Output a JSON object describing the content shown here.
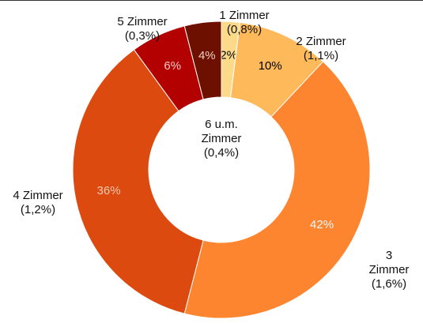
{
  "chart_data": {
    "type": "donut",
    "categories": [
      "1 Zimmer",
      "2 Zimmer",
      "3 Zimmer",
      "4 Zimmer",
      "5 Zimmer",
      "6 u.m. Zimmer"
    ],
    "values": [
      2,
      10,
      42,
      36,
      6,
      4
    ],
    "value_labels": [
      "2%",
      "10%",
      "42%",
      "36%",
      "6%",
      "4%"
    ],
    "category_notes": [
      "(0,8%)",
      "(1,1%)",
      "(1,6%)",
      "(1,2%)",
      "(0,3%)",
      "(0,4%)"
    ],
    "colors": [
      "#fdd98a",
      "#fdb95a",
      "#fd8530",
      "#dc4a10",
      "#b30000",
      "#6d1000"
    ],
    "label_colors": [
      "#000000",
      "#000000",
      "#f5f5f5",
      "#f0c8b0",
      "#f0c8c8",
      "#f0d0c0"
    ]
  }
}
